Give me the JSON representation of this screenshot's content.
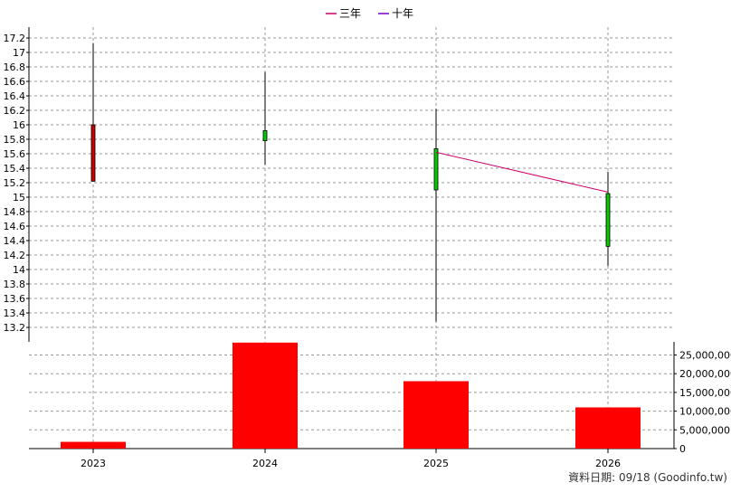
{
  "chart_data": {
    "type": "candlestick_with_volume",
    "legend": {
      "placement": "top-center",
      "items": [
        {
          "label": "三年",
          "color": "#cc0066"
        },
        {
          "label": "十年",
          "color": "#7a00cc"
        }
      ]
    },
    "categories": [
      "2023",
      "2024",
      "2025",
      "2026"
    ],
    "price": {
      "ylim": [
        13.0,
        17.35
      ],
      "ticks": [
        "13.2",
        "13.4",
        "13.6",
        "13.8",
        "14",
        "14.2",
        "14.4",
        "14.6",
        "14.8",
        "15",
        "15.2",
        "15.4",
        "15.6",
        "15.8",
        "16",
        "16.2",
        "16.4",
        "16.6",
        "16.8",
        "17",
        "17.2"
      ],
      "candles": [
        {
          "year": "2023",
          "open": 15.22,
          "high": 17.13,
          "low": 15.22,
          "close": 16.0,
          "color": "#cc0000"
        },
        {
          "year": "2024",
          "open": 15.92,
          "high": 16.73,
          "low": 15.45,
          "close": 15.78,
          "color": "#00cc00"
        },
        {
          "year": "2025",
          "open": 15.67,
          "high": 16.22,
          "low": 13.28,
          "close": 15.1,
          "color": "#00cc00"
        },
        {
          "year": "2026",
          "open": 15.05,
          "high": 15.35,
          "low": 14.05,
          "close": 14.32,
          "color": "#00cc00"
        }
      ],
      "line_3yr": {
        "name": "三年",
        "color": "#cc0066",
        "points": [
          {
            "x": "2025",
            "y": 15.62
          },
          {
            "x": "2026",
            "y": 15.07
          }
        ]
      }
    },
    "volume": {
      "ylim": [
        0,
        28500000
      ],
      "ticks": [
        "0",
        "5,000,000",
        "10,000,000",
        "15,000,000",
        "20,000,000",
        "25,000,000"
      ],
      "tick_values": [
        0,
        5000000,
        10000000,
        15000000,
        20000000,
        25000000
      ],
      "bars": [
        {
          "year": "2023",
          "value": 1800000
        },
        {
          "year": "2024",
          "value": 28300000
        },
        {
          "year": "2025",
          "value": 18000000
        },
        {
          "year": "2026",
          "value": 11000000
        }
      ],
      "bar_color": "#ff0000"
    },
    "grid": true
  },
  "footer": {
    "date_text": "資料日期: 09/18  (Goodinfo.tw)"
  }
}
